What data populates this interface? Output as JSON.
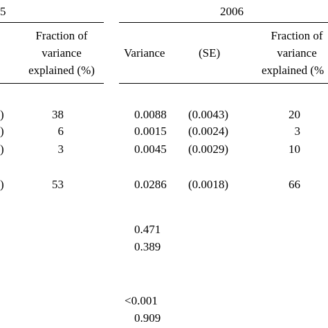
{
  "header": {
    "year_left": "5",
    "year_right": "2006",
    "left_fraction_header": [
      "Fraction of",
      "variance",
      "explained (%)"
    ],
    "variance_label": "Variance",
    "se_label": "(SE)",
    "right_fraction_header": [
      "Fraction of",
      "variance",
      "explained (%"
    ]
  },
  "rows": [
    {
      "left_paren": ")",
      "left_fraction": "38",
      "variance": "0.0088",
      "se": "(0.0043)",
      "right_fraction": "20"
    },
    {
      "left_paren": ")",
      "left_fraction": "6",
      "variance": "0.0015",
      "se": "(0.0024)",
      "right_fraction": "3"
    },
    {
      "left_paren": ")",
      "left_fraction": "3",
      "variance": "0.0045",
      "se": "(0.0029)",
      "right_fraction": "10"
    },
    {
      "left_paren": ")",
      "left_fraction": "53",
      "variance": "0.0286",
      "se": "(0.0018)",
      "right_fraction": "66"
    }
  ],
  "extra_values": [
    "0.471",
    "0.389",
    "<0.001",
    "0.909"
  ]
}
